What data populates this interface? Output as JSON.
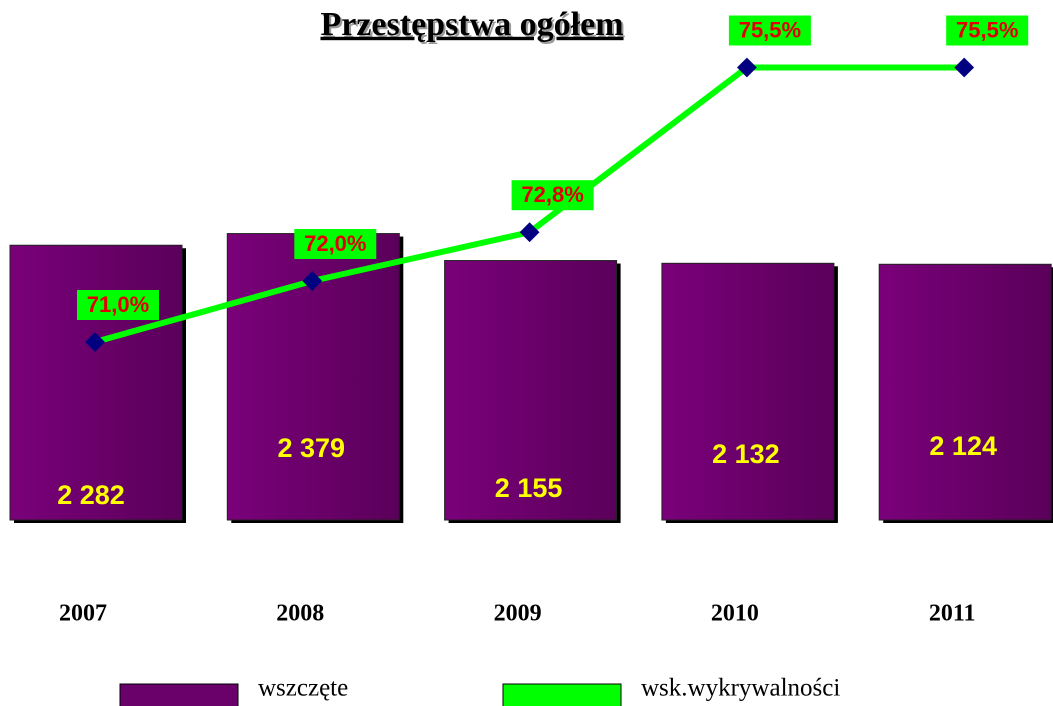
{
  "chart_data": {
    "type": "bar",
    "title": "Przestępstwa ogółem",
    "categories": [
      "2007",
      "2008",
      "2009",
      "2010",
      "2011"
    ],
    "ylim": [
      0,
      2500
    ],
    "y2lim": [
      68,
      76
    ],
    "series": [
      {
        "name": "wszczęte",
        "type": "bar",
        "color": "#6a006a",
        "values": [
          2282,
          2379,
          2155,
          2132,
          2124
        ],
        "value_labels": [
          "2 282",
          "2 379",
          "2 155",
          "2 132",
          "2 124"
        ]
      },
      {
        "name": "wsk.wykrywalności",
        "type": "line",
        "axis": "y2",
        "color": "#00ff00",
        "marker_color": "#000080",
        "values": [
          71.0,
          72.0,
          72.8,
          75.5,
          75.5
        ],
        "value_labels": [
          "71,0%",
          "72,0%",
          "72,8%",
          "75,5%",
          "75,5%"
        ]
      }
    ],
    "legend": "bottom"
  }
}
